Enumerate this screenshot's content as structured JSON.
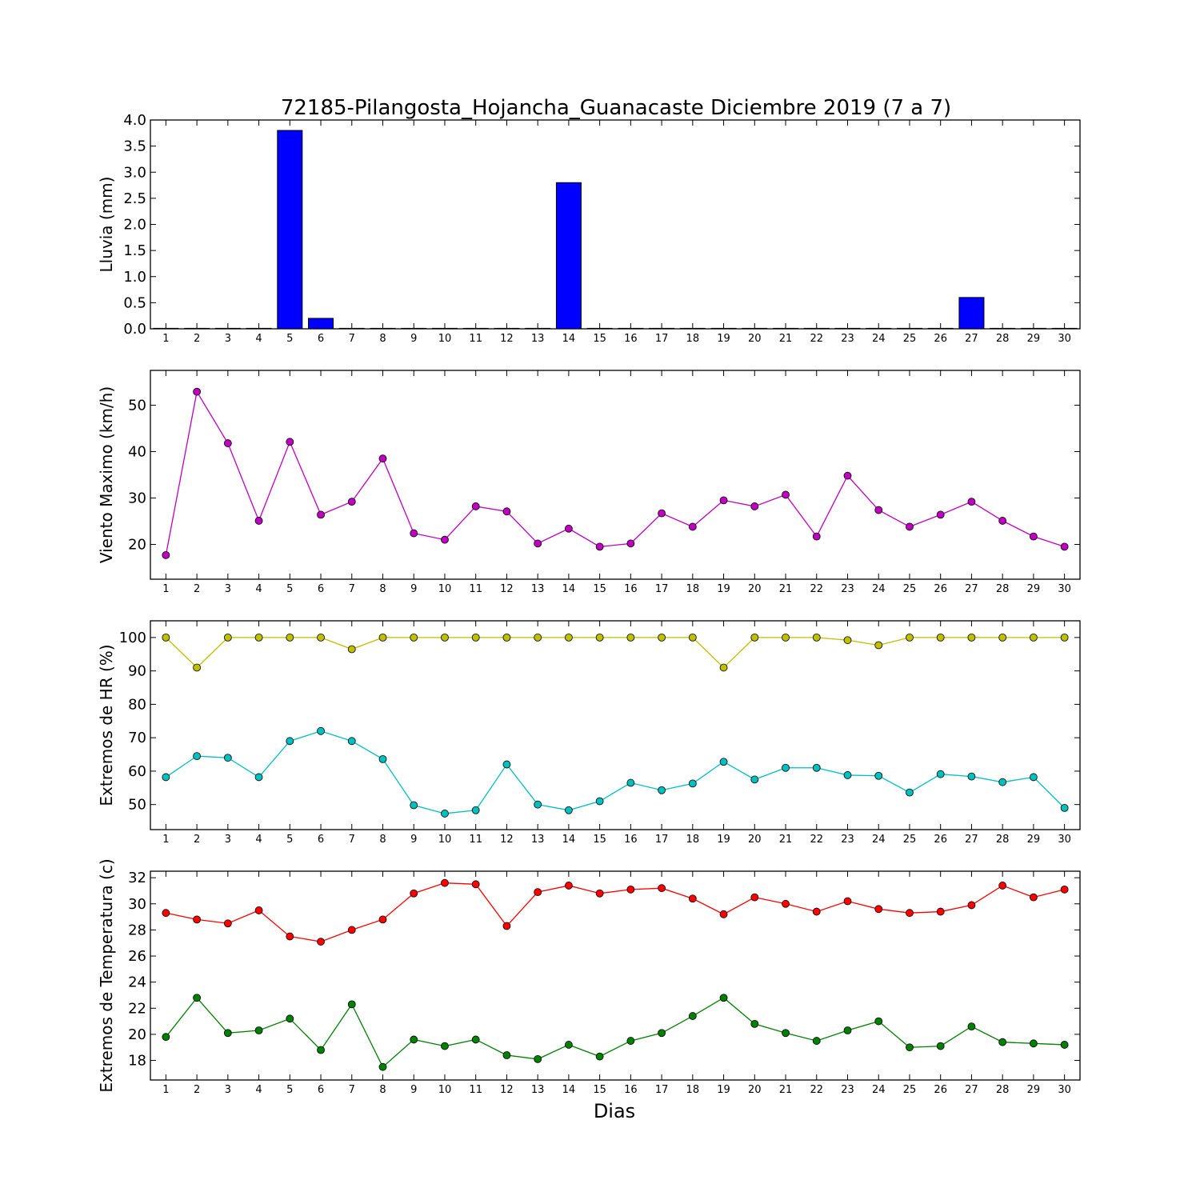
{
  "title": "72185-Pilangosta_Hojancha_Guanacaste Diciembre 2019  (7 a 7)",
  "xlabel": "Dias",
  "chart_data": [
    {
      "type": "bar",
      "ylabel": "Lluvia (mm)",
      "ylim": [
        0,
        4.0
      ],
      "yticks": [
        0.0,
        0.5,
        1.0,
        1.5,
        2.0,
        2.5,
        3.0,
        3.5,
        4.0
      ],
      "ytick_labels": [
        "0.0",
        "0.5",
        "1.0",
        "1.5",
        "2.0",
        "2.5",
        "3.0",
        "3.5",
        "4.0"
      ],
      "x": [
        1,
        2,
        3,
        4,
        5,
        6,
        7,
        8,
        9,
        10,
        11,
        12,
        13,
        14,
        15,
        16,
        17,
        18,
        19,
        20,
        21,
        22,
        23,
        24,
        25,
        26,
        27,
        28,
        29,
        30
      ],
      "series": [
        {
          "color": "#0000ff",
          "values": [
            0,
            0,
            0,
            0,
            3.8,
            0.2,
            0,
            0,
            0,
            0,
            0,
            0,
            0,
            2.8,
            0,
            0,
            0,
            0,
            0,
            0,
            0,
            0,
            0,
            0,
            0,
            0,
            0.6,
            0,
            0,
            0
          ]
        }
      ]
    },
    {
      "type": "line",
      "ylabel": "Viento Maximo (km/h)",
      "ylim": [
        12.5,
        57.5
      ],
      "yticks": [
        20,
        30,
        40,
        50
      ],
      "ytick_labels": [
        "20",
        "30",
        "40",
        "50"
      ],
      "x": [
        1,
        2,
        3,
        4,
        5,
        6,
        7,
        8,
        9,
        10,
        11,
        12,
        13,
        14,
        15,
        16,
        17,
        18,
        19,
        20,
        21,
        22,
        23,
        24,
        25,
        26,
        27,
        28,
        29,
        30
      ],
      "series": [
        {
          "color": "#bf00bf",
          "values": [
            17.7,
            52.9,
            41.8,
            25.1,
            42.1,
            26.4,
            29.2,
            38.5,
            22.4,
            21.0,
            28.2,
            27.1,
            20.2,
            23.4,
            19.5,
            20.2,
            26.7,
            23.8,
            29.5,
            28.2,
            30.7,
            21.7,
            34.8,
            27.4,
            23.8,
            26.4,
            29.2,
            25.1,
            21.7,
            19.5
          ]
        }
      ]
    },
    {
      "type": "line",
      "ylabel": "Extremos de HR (%)",
      "ylim": [
        42.5,
        105
      ],
      "yticks": [
        50,
        60,
        70,
        80,
        90,
        100
      ],
      "ytick_labels": [
        "50",
        "60",
        "70",
        "80",
        "90",
        "100"
      ],
      "x": [
        1,
        2,
        3,
        4,
        5,
        6,
        7,
        8,
        9,
        10,
        11,
        12,
        13,
        14,
        15,
        16,
        17,
        18,
        19,
        20,
        21,
        22,
        23,
        24,
        25,
        26,
        27,
        28,
        29,
        30
      ],
      "series": [
        {
          "color": "#bfbf00",
          "values": [
            100,
            91,
            100,
            100,
            100,
            100,
            96.5,
            100,
            100,
            100,
            100,
            100,
            100,
            100,
            100,
            100,
            100,
            100,
            91,
            100,
            100,
            100,
            99.2,
            97.7,
            100,
            100,
            100,
            100,
            100,
            100
          ]
        },
        {
          "color": "#00bfbf",
          "values": [
            58.2,
            64.5,
            64,
            58.2,
            69,
            72,
            69,
            63.6,
            49.8,
            47.3,
            48.3,
            62,
            50,
            48.3,
            51,
            56.5,
            54.3,
            56.3,
            62.8,
            57.5,
            61,
            61,
            58.8,
            58.6,
            53.6,
            59.1,
            58.4,
            56.7,
            58.2,
            49
          ]
        }
      ]
    },
    {
      "type": "line",
      "ylabel": "Extremos de Temperatura (c)",
      "ylim": [
        16.5,
        32.5
      ],
      "yticks": [
        18,
        20,
        22,
        24,
        26,
        28,
        30,
        32
      ],
      "ytick_labels": [
        "18",
        "20",
        "22",
        "24",
        "26",
        "28",
        "30",
        "32"
      ],
      "x": [
        1,
        2,
        3,
        4,
        5,
        6,
        7,
        8,
        9,
        10,
        11,
        12,
        13,
        14,
        15,
        16,
        17,
        18,
        19,
        20,
        21,
        22,
        23,
        24,
        25,
        26,
        27,
        28,
        29,
        30
      ],
      "series": [
        {
          "color": "#ff0000",
          "values": [
            29.3,
            28.8,
            28.5,
            29.5,
            27.5,
            27.1,
            28.0,
            28.8,
            30.8,
            31.6,
            31.5,
            28.3,
            30.9,
            31.4,
            30.8,
            31.1,
            31.2,
            30.4,
            29.2,
            30.5,
            30.0,
            29.4,
            30.2,
            29.6,
            29.3,
            29.4,
            29.9,
            31.4,
            30.5,
            31.1
          ]
        },
        {
          "color": "#008000",
          "values": [
            19.8,
            22.8,
            20.1,
            20.3,
            21.2,
            18.8,
            22.3,
            17.5,
            19.6,
            19.1,
            19.6,
            18.4,
            18.1,
            19.2,
            18.3,
            19.5,
            20.1,
            21.4,
            22.8,
            20.8,
            20.1,
            19.5,
            20.3,
            21.0,
            19.0,
            19.1,
            20.6,
            19.4,
            19.3,
            19.2
          ]
        }
      ]
    }
  ]
}
